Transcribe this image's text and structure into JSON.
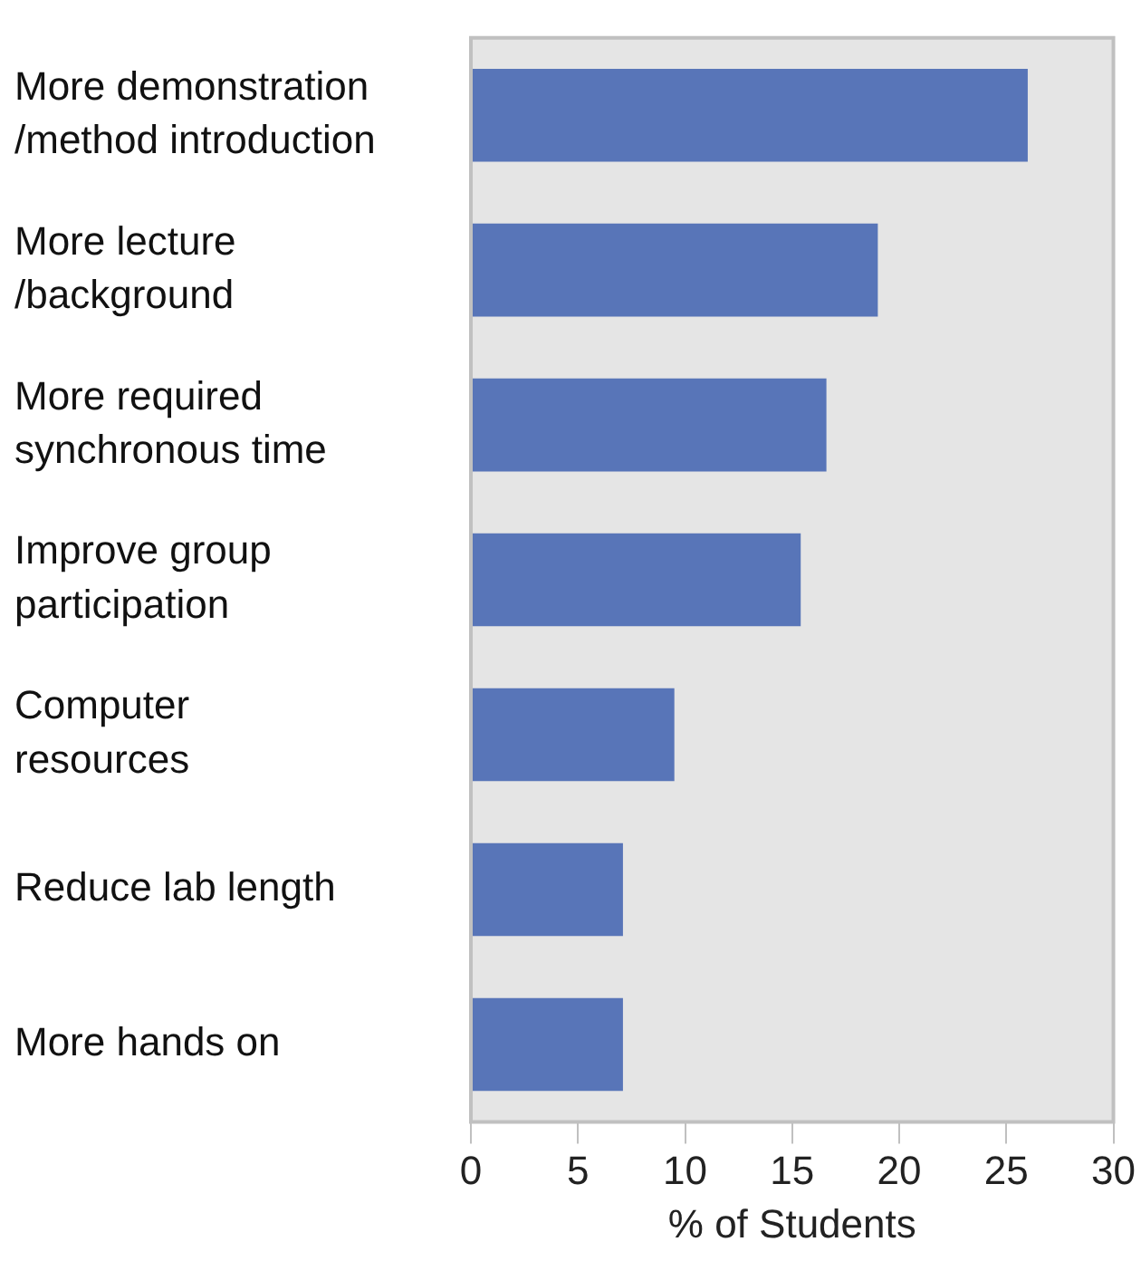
{
  "chart_data": {
    "type": "bar",
    "orientation": "horizontal",
    "categories": [
      "More demonstration\n/method introduction",
      "More lecture\n/background",
      "More required\nsynchronous time",
      "Improve group\nparticipation",
      "Computer\nresources",
      "Reduce lab length",
      "More hands on"
    ],
    "values": [
      26,
      19,
      16.6,
      15.4,
      9.5,
      7.1,
      7.1
    ],
    "color": "#5875b8",
    "xlabel": "% of Students",
    "xlim": [
      0,
      30
    ],
    "xticks": [
      0,
      5,
      10,
      15,
      20,
      25,
      30
    ],
    "grid": false,
    "legend": false
  }
}
